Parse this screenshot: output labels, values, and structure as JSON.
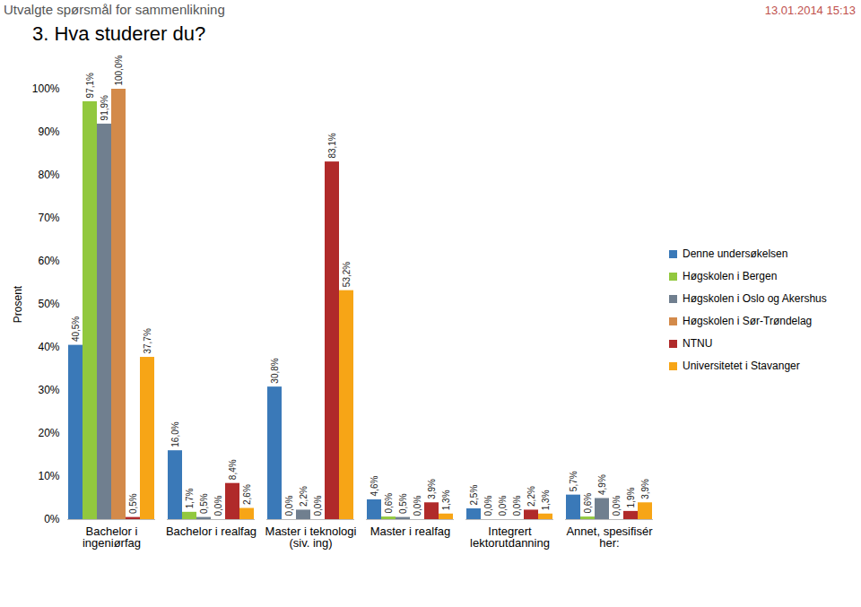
{
  "header": {
    "text": "Utvalgte spørsmål for sammenlikning",
    "date": "13.01.2014 15:13"
  },
  "chart_data": {
    "type": "bar",
    "title": "3. Hva studerer du?",
    "y_label": "Prosent",
    "categories": [
      "Bachelor i ingeniørfag",
      "Bachelor i realfag",
      "Master i teknologi (siv. ing)",
      "Master i realfag",
      "Integrert lektorutdanning",
      "Annet, spesifisér her:"
    ],
    "series": [
      {
        "name": "Denne undersøkelsen",
        "color": "#3a79b8",
        "values": [
          40.5,
          16.0,
          30.8,
          4.6,
          2.5,
          5.7
        ],
        "value_labels": [
          "40,5%",
          "16,0%",
          "30,8%",
          "4,6%",
          "2,5%",
          "5,7%"
        ]
      },
      {
        "name": "Høgskolen i Bergen",
        "color": "#92c83e",
        "values": [
          97.1,
          1.7,
          0.0,
          0.6,
          0.0,
          0.6
        ],
        "value_labels": [
          "97,1%",
          "1,7%",
          "0,0%",
          "0,6%",
          "0,0%",
          "0,6%"
        ]
      },
      {
        "name": "Høgskolen i Oslo og Akershus",
        "color": "#707f8f",
        "values": [
          91.9,
          0.5,
          2.2,
          0.5,
          0.0,
          4.9
        ],
        "value_labels": [
          "91,9%",
          "0,5%",
          "2,2%",
          "0,5%",
          "0,0%",
          "4,9%"
        ]
      },
      {
        "name": "Høgskolen i Sør-Trøndelag",
        "color": "#d38a4a",
        "values": [
          100.0,
          0.0,
          0.0,
          0.0,
          0.0,
          0.0
        ],
        "value_labels": [
          "100,0%",
          "0,0%",
          "0,0%",
          "0,0%",
          "0,0%",
          "0,0%"
        ]
      },
      {
        "name": "NTNU",
        "color": "#b02a2a",
        "values": [
          0.5,
          8.4,
          83.1,
          3.9,
          2.2,
          1.9
        ],
        "value_labels": [
          "0,5%",
          "8,4%",
          "83,1%",
          "3,9%",
          "2,2%",
          "1,9%"
        ]
      },
      {
        "name": "Universitetet i Stavanger",
        "color": "#f7a516",
        "values": [
          37.7,
          2.6,
          53.2,
          1.3,
          1.3,
          3.9
        ],
        "value_labels": [
          "37,7%",
          "2,6%",
          "53,2%",
          "1,3%",
          "1,3%",
          "3,9%"
        ]
      }
    ],
    "ylim": [
      0,
      100
    ],
    "yticks": [
      {
        "value": 0,
        "label": "0%"
      },
      {
        "value": 10,
        "label": "10%"
      },
      {
        "value": 20,
        "label": "20%"
      },
      {
        "value": 30,
        "label": "30%"
      },
      {
        "value": 40,
        "label": "40%"
      },
      {
        "value": 50,
        "label": "50%"
      },
      {
        "value": 60,
        "label": "60%"
      },
      {
        "value": 70,
        "label": "70%"
      },
      {
        "value": 80,
        "label": "80%"
      },
      {
        "value": 90,
        "label": "90%"
      },
      {
        "value": 100,
        "label": "100%"
      }
    ],
    "grid": false,
    "legend": "right",
    "data_labels": true
  }
}
